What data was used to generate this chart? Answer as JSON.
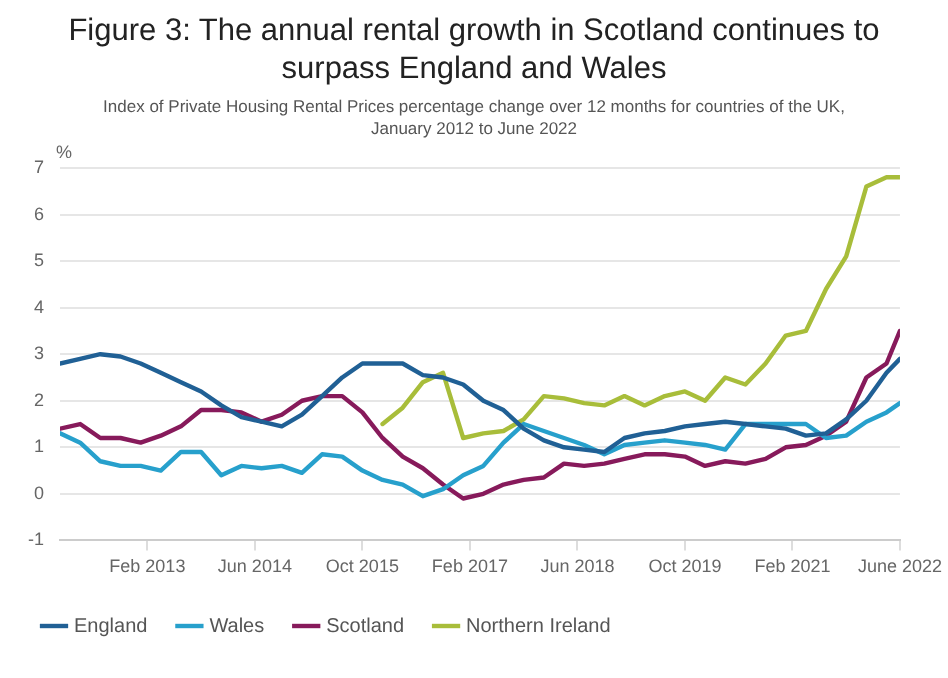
{
  "chart_data": {
    "type": "line",
    "title": "Figure 3: The annual rental growth in Scotland continues to surpass England and Wales",
    "subtitle": "Index of Private Housing Rental Prices percentage change over 12 months for countries of the UK, January 2012 to June 2022",
    "ylabel": "%",
    "x": [
      "2012-01",
      "2012-04",
      "2012-07",
      "2012-10",
      "2013-01",
      "2013-04",
      "2013-07",
      "2013-10",
      "2014-01",
      "2014-04",
      "2014-07",
      "2014-10",
      "2015-01",
      "2015-04",
      "2015-07",
      "2015-10",
      "2016-01",
      "2016-04",
      "2016-07",
      "2016-10",
      "2017-01",
      "2017-04",
      "2017-07",
      "2017-10",
      "2018-01",
      "2018-04",
      "2018-07",
      "2018-10",
      "2019-01",
      "2019-04",
      "2019-07",
      "2019-10",
      "2020-01",
      "2020-04",
      "2020-07",
      "2020-10",
      "2021-01",
      "2021-04",
      "2021-07",
      "2021-10",
      "2022-01",
      "2022-04",
      "2022-06"
    ],
    "series": [
      {
        "name": "England",
        "color": "#206095",
        "values": [
          2.8,
          2.9,
          3.0,
          2.95,
          2.8,
          2.6,
          2.4,
          2.2,
          1.9,
          1.65,
          1.55,
          1.45,
          1.7,
          2.1,
          2.5,
          2.8,
          2.8,
          2.8,
          2.55,
          2.5,
          2.35,
          2.0,
          1.8,
          1.4,
          1.15,
          1.0,
          0.95,
          0.9,
          1.2,
          1.3,
          1.35,
          1.45,
          1.5,
          1.55,
          1.5,
          1.45,
          1.4,
          1.25,
          1.3,
          1.6,
          2.0,
          2.6,
          2.9
        ]
      },
      {
        "name": "Wales",
        "color": "#27a0cc",
        "values": [
          1.3,
          1.1,
          0.7,
          0.6,
          0.6,
          0.5,
          0.9,
          0.9,
          0.4,
          0.6,
          0.55,
          0.6,
          0.45,
          0.85,
          0.8,
          0.5,
          0.3,
          0.2,
          -0.05,
          0.1,
          0.4,
          0.6,
          1.1,
          1.5,
          1.35,
          1.2,
          1.05,
          0.85,
          1.05,
          1.1,
          1.15,
          1.1,
          1.05,
          0.95,
          1.5,
          1.5,
          1.5,
          1.5,
          1.2,
          1.25,
          1.55,
          1.75,
          1.95
        ]
      },
      {
        "name": "Scotland",
        "color": "#871a5b",
        "values": [
          1.4,
          1.5,
          1.2,
          1.2,
          1.1,
          1.25,
          1.45,
          1.8,
          1.8,
          1.75,
          1.55,
          1.7,
          2.0,
          2.1,
          2.1,
          1.75,
          1.2,
          0.8,
          0.55,
          0.2,
          -0.1,
          0.0,
          0.2,
          0.3,
          0.35,
          0.65,
          0.6,
          0.65,
          0.75,
          0.85,
          0.85,
          0.8,
          0.6,
          0.7,
          0.65,
          0.75,
          1.0,
          1.05,
          1.25,
          1.55,
          2.5,
          2.8,
          3.5
        ]
      },
      {
        "name": "Northern Ireland",
        "color": "#a8bd3a",
        "values": [
          null,
          null,
          null,
          null,
          null,
          null,
          null,
          null,
          null,
          null,
          null,
          null,
          null,
          null,
          null,
          null,
          1.5,
          1.85,
          2.4,
          2.6,
          1.2,
          1.3,
          1.35,
          1.6,
          2.1,
          2.05,
          1.95,
          1.9,
          2.1,
          1.9,
          2.1,
          2.2,
          2.0,
          2.5,
          2.35,
          2.8,
          3.4,
          3.5,
          4.4,
          5.1,
          6.6,
          6.8,
          6.8
        ]
      }
    ],
    "xlim": [
      "2012-01",
      "2022-06"
    ],
    "xticks": [
      {
        "value": "2013-02",
        "label": "Feb 2013"
      },
      {
        "value": "2014-06",
        "label": "Jun 2014"
      },
      {
        "value": "2015-10",
        "label": "Oct 2015"
      },
      {
        "value": "2017-02",
        "label": "Feb 2017"
      },
      {
        "value": "2018-06",
        "label": "Jun 2018"
      },
      {
        "value": "2019-10",
        "label": "Oct 2019"
      },
      {
        "value": "2021-02",
        "label": "Feb 2021"
      },
      {
        "value": "2022-06",
        "label": "June 2022"
      }
    ],
    "ylim": [
      -1,
      7
    ],
    "yticks": [
      -1,
      0,
      1,
      2,
      3,
      4,
      5,
      6,
      7
    ],
    "grid": "y",
    "legend": "bottom",
    "marker": "none",
    "line_style": "solid"
  }
}
